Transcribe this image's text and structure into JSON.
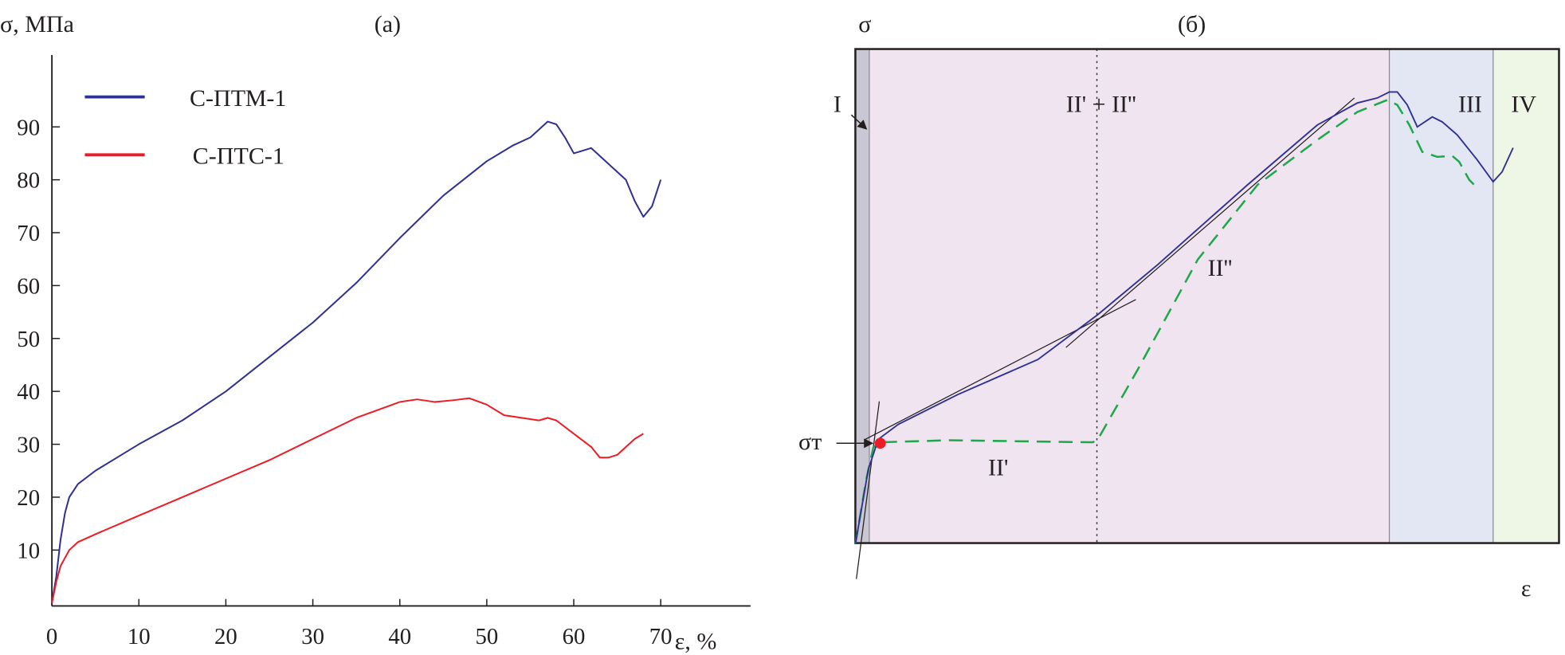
{
  "chart_data": [
    {
      "type": "line",
      "panel_label": "(a)",
      "ylabel": "σ, МПа",
      "xlabel": "ε, %",
      "xlim": [
        0,
        70
      ],
      "ylim": [
        0,
        100
      ],
      "xticks": [
        0,
        10,
        20,
        30,
        40,
        50,
        60,
        70
      ],
      "yticks": [
        10,
        20,
        30,
        40,
        50,
        60,
        70,
        80,
        90
      ],
      "grid": false,
      "legend_placement": "top-left",
      "series": [
        {
          "name": "С-ПТМ-1",
          "color": "#2e3192",
          "x": [
            0,
            0.5,
            1,
            1.5,
            2,
            3,
            5,
            8,
            10,
            15,
            20,
            25,
            30,
            35,
            40,
            45,
            50,
            53,
            55,
            57,
            58,
            59,
            60,
            61,
            62,
            64,
            66,
            67,
            68,
            69,
            70
          ],
          "y": [
            0,
            5,
            12,
            17,
            20,
            22.5,
            25,
            28,
            30,
            34.5,
            40,
            46.5,
            53,
            60.5,
            69,
            77,
            83.5,
            86.5,
            88,
            91,
            90.5,
            88,
            85,
            85.5,
            86,
            83,
            80,
            76,
            73,
            75,
            80
          ]
        },
        {
          "name": "С-ПТС-1",
          "color": "#ed1c24",
          "x": [
            0,
            0.5,
            1,
            2,
            3,
            5,
            10,
            15,
            20,
            25,
            30,
            35,
            40,
            42,
            44,
            46,
            48,
            50,
            52,
            54,
            56,
            57,
            58,
            60,
            62,
            63,
            64,
            65,
            67,
            68
          ],
          "y": [
            0,
            4,
            7,
            10,
            11.5,
            13,
            16.5,
            20,
            23.5,
            27,
            31,
            35,
            38,
            38.5,
            38,
            38.3,
            38.7,
            37.5,
            35.5,
            35,
            34.5,
            35,
            34.5,
            32,
            29.5,
            27.5,
            27.5,
            28,
            31,
            32
          ]
        }
      ]
    },
    {
      "type": "line",
      "panel_label": "(б)",
      "ylabel": "σ",
      "xlabel": "ε",
      "schematic": true,
      "regions": [
        {
          "label": "I",
          "color": "#c9c7d3"
        },
        {
          "label": "II' + II''",
          "color": "#efe4f0"
        },
        {
          "label": "III",
          "color": "#e3e6f3"
        },
        {
          "label": "IV",
          "color": "#eef6e6"
        }
      ],
      "annotations": [
        "II'",
        "II''",
        "σт"
      ],
      "curve_colors": {
        "measured": "#2e3192",
        "dashed": "#1fa84a",
        "yield_point": "#ed1c24",
        "tangents": "#231f20"
      }
    }
  ]
}
